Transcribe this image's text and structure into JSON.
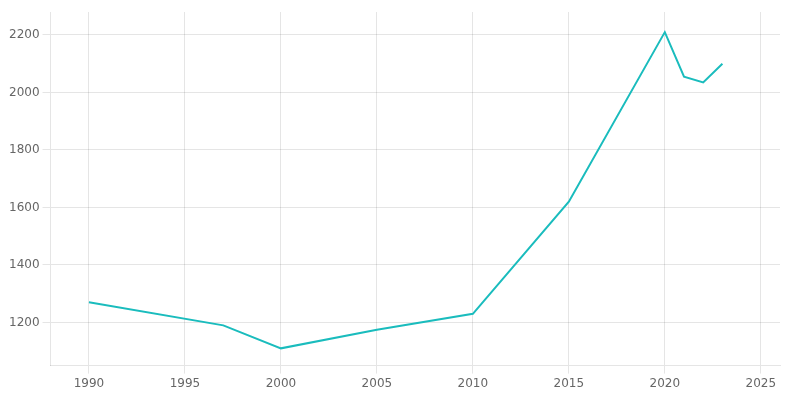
{
  "chart_data": {
    "type": "line",
    "x": [
      1990,
      1997,
      2000,
      2005,
      2010,
      2015,
      2020,
      2021,
      2022,
      2023
    ],
    "values": [
      1270,
      1190,
      1110,
      1175,
      1230,
      1620,
      2210,
      2055,
      2035,
      2100
    ],
    "color": "#1abcbd",
    "xlim": [
      1988,
      2026
    ],
    "ylim": [
      1050,
      2280
    ],
    "xticks": [
      1990,
      1995,
      2000,
      2005,
      2010,
      2015,
      2020,
      2025
    ],
    "yticks": [
      1200,
      1400,
      1600,
      1800,
      2000,
      2200
    ],
    "grid": true
  }
}
